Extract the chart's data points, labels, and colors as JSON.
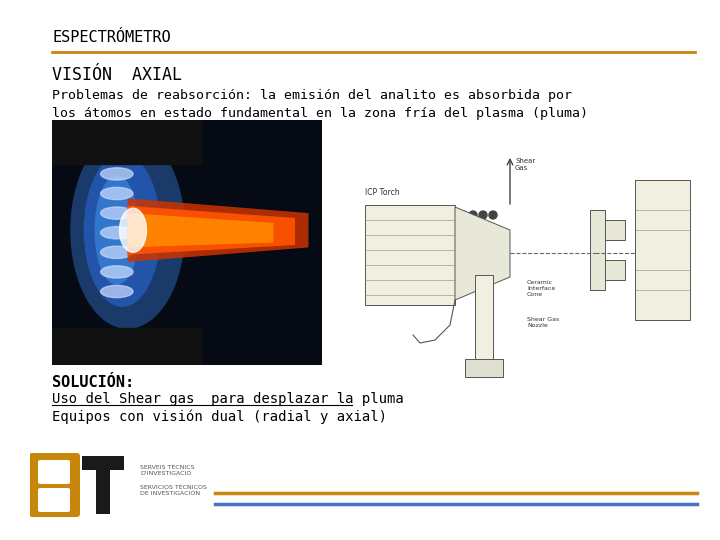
{
  "title": "ESPECTRÓMETRO",
  "subtitle": "VISIÓN  AXIAL",
  "body_text_line1": "Problemas de reabsorción: la emisión del analito es absorbida por",
  "body_text_line2": "los átomos en estado fundamental en la zona fría del plasma (pluma)",
  "solution_title": "SOLUCIÓN:",
  "solution_line1": "Uso del Shear gas  para desplazar la pluma",
  "solution_line2": "Equipos con visión dual (radial y axial)",
  "bg_color": "#ffffff",
  "title_color": "#000000",
  "subtitle_color": "#000000",
  "body_color": "#000000",
  "orange_line_color": "#C8860A",
  "footer_orange_color": "#C8860A",
  "footer_blue_color": "#4472C4"
}
